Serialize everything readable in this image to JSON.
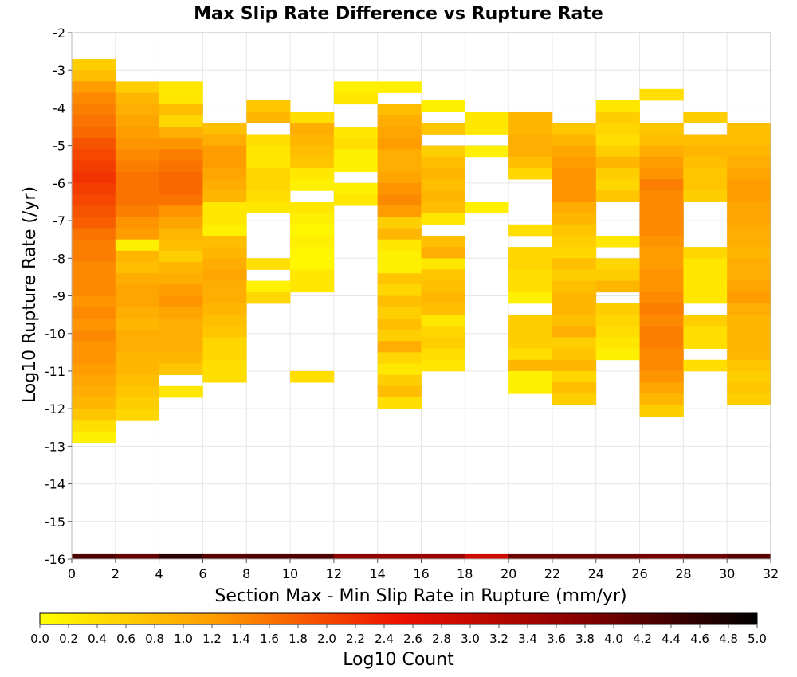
{
  "chart_data": {
    "type": "heatmap",
    "title": "Max Slip Rate Difference vs Rupture Rate",
    "xlabel": "Section Max - Min Slip Rate in Rupture (mm/yr)",
    "ylabel": "Log10 Rupture Rate (/yr)",
    "xlim": [
      0,
      32
    ],
    "ylim": [
      -16,
      -2
    ],
    "x_ticks": [
      0,
      2,
      4,
      6,
      8,
      10,
      12,
      14,
      16,
      18,
      20,
      22,
      24,
      26,
      28,
      30,
      32
    ],
    "y_ticks": [
      -2,
      -3,
      -4,
      -5,
      -6,
      -7,
      -8,
      -9,
      -10,
      -11,
      -12,
      -13,
      -14,
      -15,
      -16
    ],
    "x_bin_width": 2,
    "y_bin_height": 0.3,
    "grid": true,
    "colorbar": {
      "label": "Log10 Count",
      "range": [
        0.0,
        5.0
      ],
      "ticks": [
        "0.0",
        "0.2",
        "0.4",
        "0.6",
        "0.8",
        "1.0",
        "1.2",
        "1.4",
        "1.6",
        "1.8",
        "2.0",
        "2.2",
        "2.4",
        "2.6",
        "2.8",
        "3.0",
        "3.2",
        "3.4",
        "3.6",
        "3.8",
        "4.0",
        "4.2",
        "4.4",
        "4.6",
        "4.8",
        "5.0"
      ],
      "colors": [
        "#ffff00",
        "#ff9900",
        "#ee1100",
        "#880000",
        "#000000"
      ],
      "placement": "bottom"
    },
    "columns": [
      {
        "x_start": 0,
        "y_top": -2.7,
        "values": [
          0.6,
          0.8,
          1.2,
          1.4,
          1.5,
          1.6,
          1.7,
          1.9,
          2.0,
          2.1,
          2.2,
          2.1,
          2.0,
          1.9,
          1.8,
          1.6,
          1.5,
          1.5,
          1.4,
          1.4,
          1.4,
          1.3,
          1.4,
          1.3,
          1.4,
          1.3,
          1.3,
          1.2,
          1.1,
          1.0,
          0.9,
          0.7,
          0.4,
          0.2
        ]
      },
      {
        "x_start": 2,
        "y_top": -3.3,
        "values": [
          0.6,
          0.9,
          1.0,
          1.1,
          1.2,
          1.3,
          1.4,
          1.5,
          1.6,
          1.6,
          1.6,
          1.5,
          1.3,
          1.2,
          0.2,
          0.9,
          0.8,
          1.0,
          1.1,
          1.1,
          1.0,
          0.9,
          1.0,
          1.0,
          0.9,
          0.9,
          0.8,
          0.7,
          0.6,
          0.5
        ]
      },
      {
        "x_start": 4,
        "y_top": -3.3,
        "values": [
          0.3,
          0.3,
          0.8,
          0.5,
          1.0,
          1.3,
          1.5,
          1.6,
          1.7,
          1.7,
          1.6,
          1.3,
          1.1,
          0.9,
          0.8,
          0.6,
          0.9,
          1.0,
          1.2,
          1.3,
          1.1,
          1.0,
          1.0,
          1.0,
          0.9,
          0.7,
          null,
          0.3
        ]
      },
      {
        "x_start": 6,
        "y_top": -4.4,
        "values": [
          0.8,
          1.0,
          1.2,
          1.2,
          1.1,
          1.0,
          0.9,
          0.3,
          0.3,
          0.2,
          0.8,
          0.9,
          1.0,
          1.1,
          1.0,
          1.0,
          0.9,
          0.8,
          0.7,
          0.5,
          0.5,
          0.4,
          0.4
        ]
      },
      {
        "x_start": 8,
        "y_top": -3.8,
        "values": [
          0.7,
          0.9,
          null,
          0.4,
          0.3,
          0.3,
          0.5,
          0.5,
          0.4,
          0.3,
          null,
          null,
          null,
          null,
          0.4,
          null,
          0.2,
          0.5
        ]
      },
      {
        "x_start": 10,
        "y_top": -4.1,
        "values": [
          0.4,
          1.0,
          0.9,
          0.8,
          0.7,
          0.3,
          0.2,
          null,
          0.3,
          0.2,
          0.1,
          0.2,
          0.1,
          0.1,
          0.3,
          0.3,
          null,
          null,
          null,
          null,
          null,
          null,
          null,
          0.4
        ]
      },
      {
        "x_start": 12,
        "y_top": -3.3,
        "values": [
          0.2,
          0.3,
          null,
          null,
          0.3,
          0.4,
          0.2,
          0.2,
          null,
          0.2,
          0.3
        ]
      },
      {
        "x_start": 14,
        "y_top": -3.3,
        "values": [
          0.2,
          null,
          0.8,
          1.0,
          1.1,
          1.2,
          1.0,
          1.0,
          1.1,
          1.3,
          1.4,
          1.2,
          0.6,
          0.9,
          0.3,
          0.2,
          0.2,
          0.7,
          0.5,
          0.8,
          0.6,
          0.8,
          0.6,
          1.0,
          0.5,
          0.3,
          0.6,
          0.8,
          0.4
        ]
      },
      {
        "x_start": 16,
        "y_top": -3.8,
        "values": [
          0.2,
          null,
          0.7,
          null,
          0.6,
          0.8,
          0.9,
          0.8,
          0.9,
          0.8,
          0.3,
          null,
          0.8,
          1.0,
          0.3,
          0.7,
          0.8,
          0.9,
          0.8,
          0.3,
          0.5,
          0.6,
          0.4,
          0.3
        ]
      },
      {
        "x_start": 18,
        "y_top": -4.1,
        "values": [
          0.3,
          0.3,
          null,
          0.2,
          null,
          null,
          null,
          null,
          0.2
        ]
      },
      {
        "x_start": 20,
        "y_top": -4.1,
        "values": [
          0.9,
          0.9,
          1.0,
          1.0,
          0.8,
          0.5,
          null,
          null,
          null,
          null,
          0.4,
          null,
          0.5,
          0.5,
          0.4,
          0.4,
          0.2,
          null,
          0.6,
          0.6,
          0.6,
          0.4,
          0.9,
          0.2,
          0.2
        ]
      },
      {
        "x_start": 22,
        "y_top": -4.4,
        "values": [
          0.7,
          0.9,
          1.1,
          1.2,
          1.3,
          1.3,
          1.3,
          1.0,
          0.9,
          0.7,
          0.6,
          0.5,
          0.8,
          0.6,
          0.8,
          0.9,
          0.9,
          0.8,
          1.0,
          0.6,
          0.7,
          0.9,
          0.5,
          0.8,
          0.6
        ]
      },
      {
        "x_start": 24,
        "y_top": -3.8,
        "values": [
          0.3,
          0.6,
          0.5,
          0.4,
          0.6,
          0.9,
          0.6,
          0.5,
          0.7,
          null,
          null,
          null,
          0.3,
          null,
          0.5,
          0.6,
          0.9,
          null,
          0.6,
          0.5,
          0.4,
          0.3,
          0.2
        ]
      },
      {
        "x_start": 26,
        "y_top": -3.5,
        "values": [
          0.4,
          null,
          null,
          0.7,
          0.8,
          1.0,
          1.2,
          1.3,
          1.5,
          1.4,
          1.4,
          1.4,
          1.4,
          1.3,
          1.2,
          1.2,
          1.3,
          1.3,
          1.4,
          1.5,
          1.4,
          1.5,
          1.5,
          1.4,
          1.4,
          1.3,
          1.1,
          0.9,
          0.6
        ]
      },
      {
        "x_start": 28,
        "y_top": -4.1,
        "values": [
          0.6,
          null,
          0.8,
          0.9,
          0.8,
          0.7,
          0.7,
          0.6,
          null,
          null,
          null,
          null,
          0.5,
          0.3,
          0.3,
          0.3,
          0.3,
          null,
          0.6,
          0.4,
          0.4,
          null,
          0.4
        ]
      },
      {
        "x_start": 30,
        "y_top": -4.4,
        "values": [
          0.8,
          0.8,
          0.9,
          1.0,
          1.1,
          1.2,
          1.2,
          1.1,
          1.1,
          1.0,
          1.0,
          0.9,
          1.0,
          1.0,
          1.1,
          1.2,
          1.0,
          0.9,
          0.9,
          0.9,
          0.9,
          0.7,
          0.6,
          0.7,
          0.6
        ]
      }
    ],
    "bottom_row": {
      "y": -16,
      "values": [
        4.3,
        4.1,
        4.6,
        4.2,
        4.3,
        4.3,
        3.7,
        3.6,
        3.5,
        2.9,
        4.0,
        4.0,
        4.0,
        3.9,
        4.0,
        4.2
      ]
    }
  }
}
